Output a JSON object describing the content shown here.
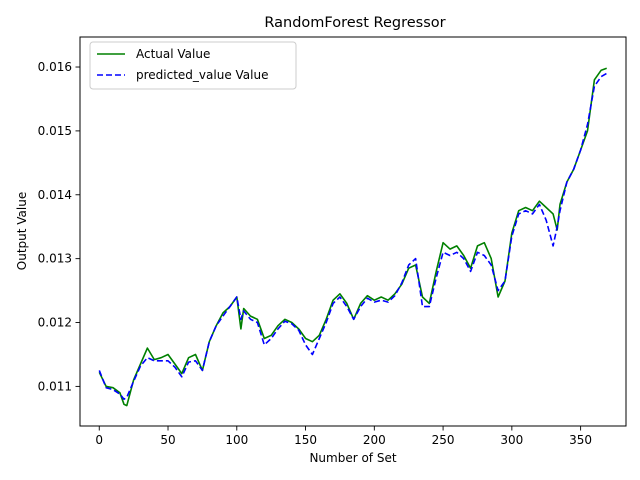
{
  "chart_data": {
    "type": "line",
    "title": "RandomForest Regressor",
    "xlabel": "Number of Set",
    "ylabel": "Output Value",
    "xlim": [
      -14,
      383
    ],
    "ylim": [
      0.01038,
      0.01647
    ],
    "xticks": [
      0,
      50,
      100,
      150,
      200,
      250,
      300,
      350
    ],
    "yticks": [
      0.011,
      0.012,
      0.013,
      0.014,
      0.015,
      0.016
    ],
    "grid": false,
    "legend_position": "top-left",
    "series": [
      {
        "name": "Actual Value",
        "color": "#008000",
        "style": "solid",
        "points": [
          [
            0,
            0.01122
          ],
          [
            5,
            0.011
          ],
          [
            10,
            0.01098
          ],
          [
            15,
            0.0109
          ],
          [
            18,
            0.01072
          ],
          [
            20,
            0.0107
          ],
          [
            25,
            0.0111
          ],
          [
            30,
            0.01135
          ],
          [
            35,
            0.0116
          ],
          [
            40,
            0.01142
          ],
          [
            45,
            0.01145
          ],
          [
            50,
            0.0115
          ],
          [
            55,
            0.01135
          ],
          [
            60,
            0.0112
          ],
          [
            65,
            0.01145
          ],
          [
            70,
            0.0115
          ],
          [
            75,
            0.01125
          ],
          [
            80,
            0.0117
          ],
          [
            85,
            0.01195
          ],
          [
            90,
            0.01215
          ],
          [
            95,
            0.01225
          ],
          [
            100,
            0.0124
          ],
          [
            103,
            0.0119
          ],
          [
            105,
            0.01222
          ],
          [
            110,
            0.0121
          ],
          [
            115,
            0.01205
          ],
          [
            120,
            0.01175
          ],
          [
            125,
            0.0118
          ],
          [
            130,
            0.01195
          ],
          [
            135,
            0.01205
          ],
          [
            140,
            0.012
          ],
          [
            145,
            0.0119
          ],
          [
            150,
            0.01175
          ],
          [
            155,
            0.0117
          ],
          [
            160,
            0.0118
          ],
          [
            165,
            0.01205
          ],
          [
            170,
            0.01235
          ],
          [
            175,
            0.01245
          ],
          [
            180,
            0.0123
          ],
          [
            185,
            0.01205
          ],
          [
            190,
            0.0123
          ],
          [
            195,
            0.01242
          ],
          [
            200,
            0.01235
          ],
          [
            205,
            0.0124
          ],
          [
            210,
            0.01235
          ],
          [
            215,
            0.01245
          ],
          [
            220,
            0.0126
          ],
          [
            225,
            0.01285
          ],
          [
            230,
            0.0129
          ],
          [
            235,
            0.0124
          ],
          [
            240,
            0.0123
          ],
          [
            245,
            0.0128
          ],
          [
            250,
            0.01325
          ],
          [
            255,
            0.01315
          ],
          [
            260,
            0.0132
          ],
          [
            265,
            0.01305
          ],
          [
            270,
            0.01285
          ],
          [
            275,
            0.0132
          ],
          [
            280,
            0.01325
          ],
          [
            285,
            0.013
          ],
          [
            290,
            0.0124
          ],
          [
            295,
            0.01265
          ],
          [
            300,
            0.0134
          ],
          [
            305,
            0.01375
          ],
          [
            310,
            0.0138
          ],
          [
            315,
            0.01375
          ],
          [
            320,
            0.0139
          ],
          [
            325,
            0.0138
          ],
          [
            330,
            0.0137
          ],
          [
            333,
            0.01345
          ],
          [
            335,
            0.01385
          ],
          [
            340,
            0.0142
          ],
          [
            345,
            0.0144
          ],
          [
            350,
            0.0147
          ],
          [
            355,
            0.015
          ],
          [
            360,
            0.0158
          ],
          [
            365,
            0.01595
          ],
          [
            369,
            0.01598
          ]
        ]
      },
      {
        "name": "predicted_value Value",
        "color": "#0000ff",
        "style": "dashed",
        "points": [
          [
            0,
            0.01125
          ],
          [
            5,
            0.01098
          ],
          [
            10,
            0.01095
          ],
          [
            15,
            0.01088
          ],
          [
            18,
            0.0108
          ],
          [
            20,
            0.01083
          ],
          [
            25,
            0.01108
          ],
          [
            30,
            0.01132
          ],
          [
            35,
            0.01145
          ],
          [
            40,
            0.0114
          ],
          [
            45,
            0.0114
          ],
          [
            50,
            0.0114
          ],
          [
            55,
            0.0113
          ],
          [
            60,
            0.01115
          ],
          [
            65,
            0.01138
          ],
          [
            70,
            0.0114
          ],
          [
            75,
            0.01125
          ],
          [
            80,
            0.0117
          ],
          [
            85,
            0.01195
          ],
          [
            90,
            0.0121
          ],
          [
            95,
            0.01225
          ],
          [
            100,
            0.0124
          ],
          [
            103,
            0.01205
          ],
          [
            105,
            0.01218
          ],
          [
            110,
            0.01205
          ],
          [
            115,
            0.012
          ],
          [
            120,
            0.01165
          ],
          [
            125,
            0.01175
          ],
          [
            130,
            0.0119
          ],
          [
            135,
            0.01202
          ],
          [
            140,
            0.01198
          ],
          [
            145,
            0.01188
          ],
          [
            150,
            0.01165
          ],
          [
            155,
            0.0115
          ],
          [
            160,
            0.01175
          ],
          [
            165,
            0.012
          ],
          [
            170,
            0.0123
          ],
          [
            175,
            0.0124
          ],
          [
            180,
            0.01225
          ],
          [
            185,
            0.01205
          ],
          [
            190,
            0.01225
          ],
          [
            195,
            0.01238
          ],
          [
            200,
            0.01232
          ],
          [
            205,
            0.01235
          ],
          [
            210,
            0.01232
          ],
          [
            215,
            0.01242
          ],
          [
            220,
            0.01262
          ],
          [
            225,
            0.0129
          ],
          [
            230,
            0.013
          ],
          [
            235,
            0.01225
          ],
          [
            240,
            0.01225
          ],
          [
            245,
            0.0127
          ],
          [
            250,
            0.0131
          ],
          [
            255,
            0.01305
          ],
          [
            260,
            0.0131
          ],
          [
            265,
            0.013
          ],
          [
            270,
            0.0128
          ],
          [
            275,
            0.0131
          ],
          [
            280,
            0.01305
          ],
          [
            285,
            0.0129
          ],
          [
            290,
            0.0125
          ],
          [
            295,
            0.01265
          ],
          [
            300,
            0.01335
          ],
          [
            305,
            0.0137
          ],
          [
            310,
            0.01375
          ],
          [
            315,
            0.0137
          ],
          [
            320,
            0.01385
          ],
          [
            325,
            0.0136
          ],
          [
            330,
            0.0132
          ],
          [
            333,
            0.0135
          ],
          [
            335,
            0.01375
          ],
          [
            340,
            0.0142
          ],
          [
            345,
            0.0144
          ],
          [
            350,
            0.0147
          ],
          [
            355,
            0.0151
          ],
          [
            360,
            0.0157
          ],
          [
            365,
            0.01585
          ],
          [
            369,
            0.0159
          ]
        ]
      }
    ]
  }
}
